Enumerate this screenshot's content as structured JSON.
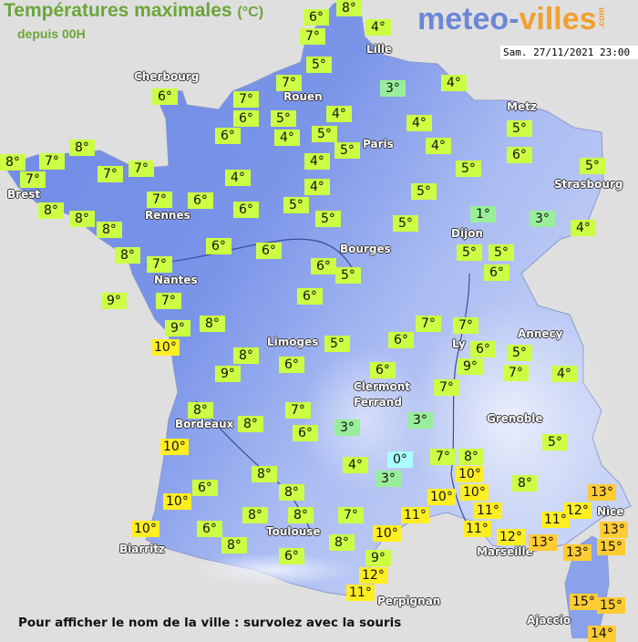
{
  "header": {
    "title": "Températures maximales",
    "unit": "(°C)",
    "subtitle": "depuis 00H",
    "logo_main_1": "meteo-",
    "logo_main_2": "villes",
    "logo_suffix": ".com",
    "datetime": "Sam. 27/11/2021 23:00"
  },
  "footer": {
    "hint": "Pour afficher le nom de la ville : survolez avec la souris"
  },
  "colors": {
    "background": "#e0dfdf",
    "land": "#7690e6",
    "title": "#6aa63a",
    "temp_0": "#aaffff",
    "temp_1_3": "#99ee99",
    "temp_4_9": "#ccff44",
    "temp_10_12": "#ffee22",
    "temp_13_15": "#ffcc33"
  },
  "cities": [
    "Cherbourg",
    "Lille",
    "Rouen",
    "Metz",
    "Paris",
    "Brest",
    "Rennes",
    "Strasbourg",
    "Dijon",
    "Bourges",
    "Nantes",
    "Annecy",
    "Limoges",
    "Ly",
    "Clermont",
    "Ferrand",
    "Grenoble",
    "Bordeaux",
    "Nice",
    "Toulouse",
    "Biarritz",
    "Marseille",
    "Perpignan",
    "Ajaccio"
  ],
  "temperatures": [
    6,
    8,
    7,
    4,
    5,
    7,
    3,
    4,
    6,
    7,
    6,
    5,
    4,
    6,
    4,
    5,
    4,
    5,
    5,
    4,
    6,
    8,
    8,
    7,
    7,
    7,
    7,
    4,
    5,
    5,
    4,
    4,
    8,
    7,
    6,
    6,
    5,
    5,
    8,
    8,
    5,
    5,
    1,
    3,
    4,
    6,
    6,
    8,
    7,
    6,
    5,
    5,
    5,
    6,
    9,
    7,
    6,
    9,
    8,
    7,
    7,
    10,
    5,
    6,
    6,
    5,
    8,
    9,
    6,
    6,
    9,
    7,
    4,
    7,
    8,
    7,
    3,
    3,
    8,
    6,
    10,
    8,
    4,
    0,
    7,
    8,
    3,
    10,
    5,
    8,
    6,
    10,
    8,
    10,
    10,
    13,
    12,
    11,
    11,
    11,
    11,
    12,
    13,
    8,
    8,
    7,
    10,
    6,
    8,
    10,
    8,
    13,
    13,
    15,
    6,
    9,
    12,
    11,
    15,
    15,
    14
  ],
  "degree_symbol": "°"
}
